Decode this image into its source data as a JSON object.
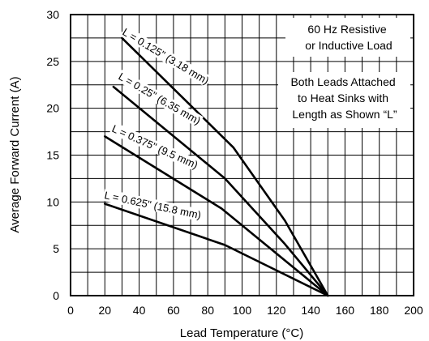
{
  "chart_data": {
    "type": "line",
    "xlabel": "Lead Temperature (°C)",
    "ylabel": "Average Forward Current (A)",
    "xlim": [
      0,
      200
    ],
    "ylim": [
      0,
      30
    ],
    "x_ticks": [
      "0",
      "20",
      "40",
      "60",
      "80",
      "100",
      "120",
      "140",
      "160",
      "180",
      "200"
    ],
    "y_ticks": [
      "0",
      "5",
      "10",
      "15",
      "20",
      "25",
      "30"
    ],
    "grid": true,
    "annotations": [
      [
        "60 Hz Resistive",
        "or Inductive Load"
      ],
      [
        "Both Leads Attached",
        "to Heat Sinks with",
        "Length as Shown “L”"
      ]
    ],
    "series": [
      {
        "name": "L = 0.125\" (3.18 mm)",
        "x": [
          30,
          95,
          125,
          150
        ],
        "y": [
          27.5,
          15.8,
          8,
          0
        ]
      },
      {
        "name": "L = 0.25\" (6.35 mm)",
        "x": [
          25,
          90,
          125,
          150
        ],
        "y": [
          22.3,
          12.5,
          5.5,
          0
        ]
      },
      {
        "name": "L = 0.375\" (9.5 mm)",
        "x": [
          20,
          88,
          150
        ],
        "y": [
          17,
          9.3,
          0
        ]
      },
      {
        "name": "L = 0.625\" (15.8 mm)",
        "x": [
          20,
          90,
          150
        ],
        "y": [
          9.8,
          5.4,
          0
        ]
      }
    ]
  }
}
